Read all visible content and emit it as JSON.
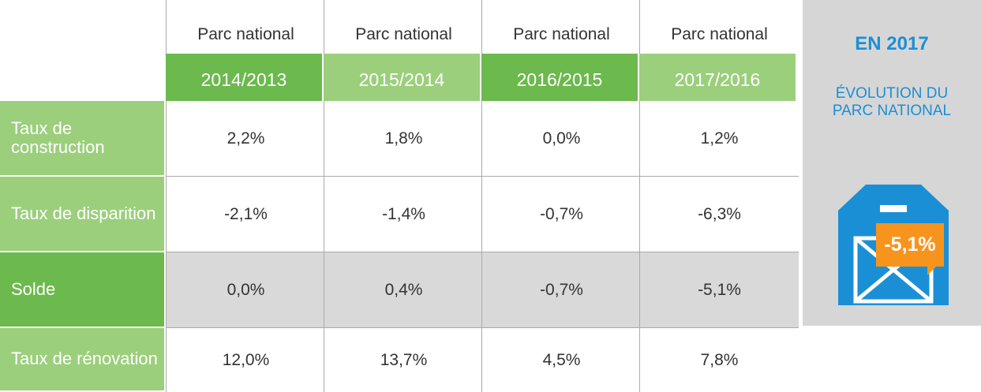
{
  "header": {
    "columns": [
      "Parc national",
      "Parc national",
      "Parc national",
      "Parc national"
    ],
    "years": [
      "2014/2013",
      "2015/2014",
      "2016/2015",
      "2017/2016"
    ]
  },
  "rows": [
    {
      "label": "Taux de construction",
      "values": [
        "2,2%",
        "1,8%",
        "0,0%",
        "1,2%"
      ]
    },
    {
      "label": "Taux de disparition",
      "values": [
        "-2,1%",
        "-1,4%",
        "-0,7%",
        "-6,3%"
      ]
    },
    {
      "label": "Solde",
      "values": [
        "0,0%",
        "0,4%",
        "-0,7%",
        "-5,1%"
      ]
    },
    {
      "label": "Taux de rénovation",
      "values": [
        "12,0%",
        "13,7%",
        "4,5%",
        "7,8%"
      ]
    }
  ],
  "panel": {
    "title": "EN 2017",
    "subtitle": "ÉVOLUTION DU PARC NATIONAL",
    "badge": "-5,1%"
  }
}
